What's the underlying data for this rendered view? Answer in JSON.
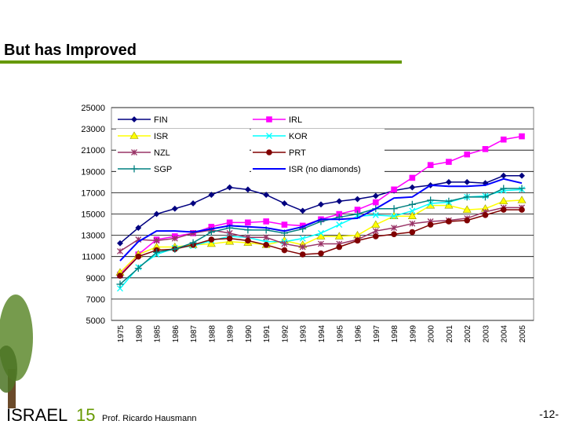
{
  "header": {
    "title": "But has Improved"
  },
  "chart_data": {
    "type": "line",
    "categories": [
      "1975",
      "1980",
      "1985",
      "1986",
      "1987",
      "1988",
      "1989",
      "1990",
      "1991",
      "1992",
      "1993",
      "1994",
      "1995",
      "1996",
      "1997",
      "1998",
      "1999",
      "2000",
      "2001",
      "2002",
      "2003",
      "2004",
      "2005"
    ],
    "ylim": [
      5000,
      25000
    ],
    "yticks": [
      5000,
      7000,
      9000,
      11000,
      13000,
      15000,
      17000,
      19000,
      21000,
      23000,
      25000
    ],
    "grid": true,
    "series": [
      {
        "name": "FIN",
        "color": "#000080",
        "marker": "diamond",
        "values": [
          12250,
          13700,
          15000,
          15500,
          16000,
          16800,
          17500,
          17300,
          16800,
          16000,
          15300,
          15900,
          16200,
          16400,
          16700,
          17200,
          17500,
          17700,
          18000,
          18000,
          17900,
          18600,
          18600
        ]
      },
      {
        "name": "IRL",
        "color": "#ff00ff",
        "marker": "square",
        "values": [
          9300,
          11200,
          12600,
          12900,
          13200,
          13800,
          14200,
          14200,
          14300,
          14000,
          13900,
          14500,
          15000,
          15400,
          16100,
          17300,
          18400,
          19600,
          19900,
          20600,
          21100,
          22000,
          22300
        ]
      },
      {
        "name": "ISR",
        "color": "#ffff00",
        "marker": "triangle",
        "values": [
          9500,
          11200,
          11900,
          11900,
          12100,
          12200,
          12400,
          12300,
          12100,
          12500,
          12100,
          12900,
          12900,
          13000,
          14000,
          14800,
          14800,
          15800,
          15800,
          15400,
          15500,
          16200,
          16300
        ]
      },
      {
        "name": "KOR",
        "color": "#00ffff",
        "marker": "x",
        "values": [
          8000,
          10000,
          11200,
          11800,
          12000,
          12500,
          12900,
          12800,
          12400,
          12400,
          12700,
          13200,
          14000,
          14800,
          14900,
          14800,
          15300,
          16000,
          16100,
          16600,
          16700,
          17200,
          17300
        ]
      },
      {
        "name": "NZL",
        "color": "#993366",
        "marker": "star",
        "values": [
          11500,
          12600,
          12500,
          12700,
          13200,
          13500,
          13200,
          12800,
          12800,
          12200,
          11900,
          12200,
          12200,
          12600,
          13400,
          13700,
          14100,
          14300,
          14400,
          14600,
          15200,
          15600,
          15600
        ]
      },
      {
        "name": "PRT",
        "color": "#800000",
        "marker": "circle",
        "values": [
          9200,
          11000,
          11600,
          11700,
          12100,
          12600,
          12700,
          12500,
          12100,
          11600,
          11200,
          11300,
          11900,
          12500,
          12900,
          13100,
          13300,
          14000,
          14300,
          14400,
          14900,
          15400,
          15400
        ]
      },
      {
        "name": "SGP",
        "color": "#008080",
        "marker": "plus",
        "values": [
          8400,
          9900,
          11400,
          11700,
          12300,
          13300,
          13700,
          13500,
          13500,
          13200,
          13600,
          14300,
          14700,
          15000,
          15500,
          15500,
          15900,
          16300,
          16200,
          16600,
          16600,
          17400,
          17400
        ]
      },
      {
        "name": "ISR (no diamonds)",
        "color": "#0000ff",
        "marker": "none",
        "values": [
          10600,
          12400,
          13400,
          13400,
          13300,
          13600,
          13900,
          13800,
          13700,
          13400,
          13800,
          14500,
          14500,
          14600,
          15500,
          16500,
          16600,
          17700,
          17600,
          17600,
          17700,
          18300,
          17900
        ]
      }
    ]
  },
  "footer": {
    "logo_text": "ISRAEL",
    "logo_number": "15",
    "author": "Prof. Ricardo Hausmann",
    "page": "-12-"
  }
}
